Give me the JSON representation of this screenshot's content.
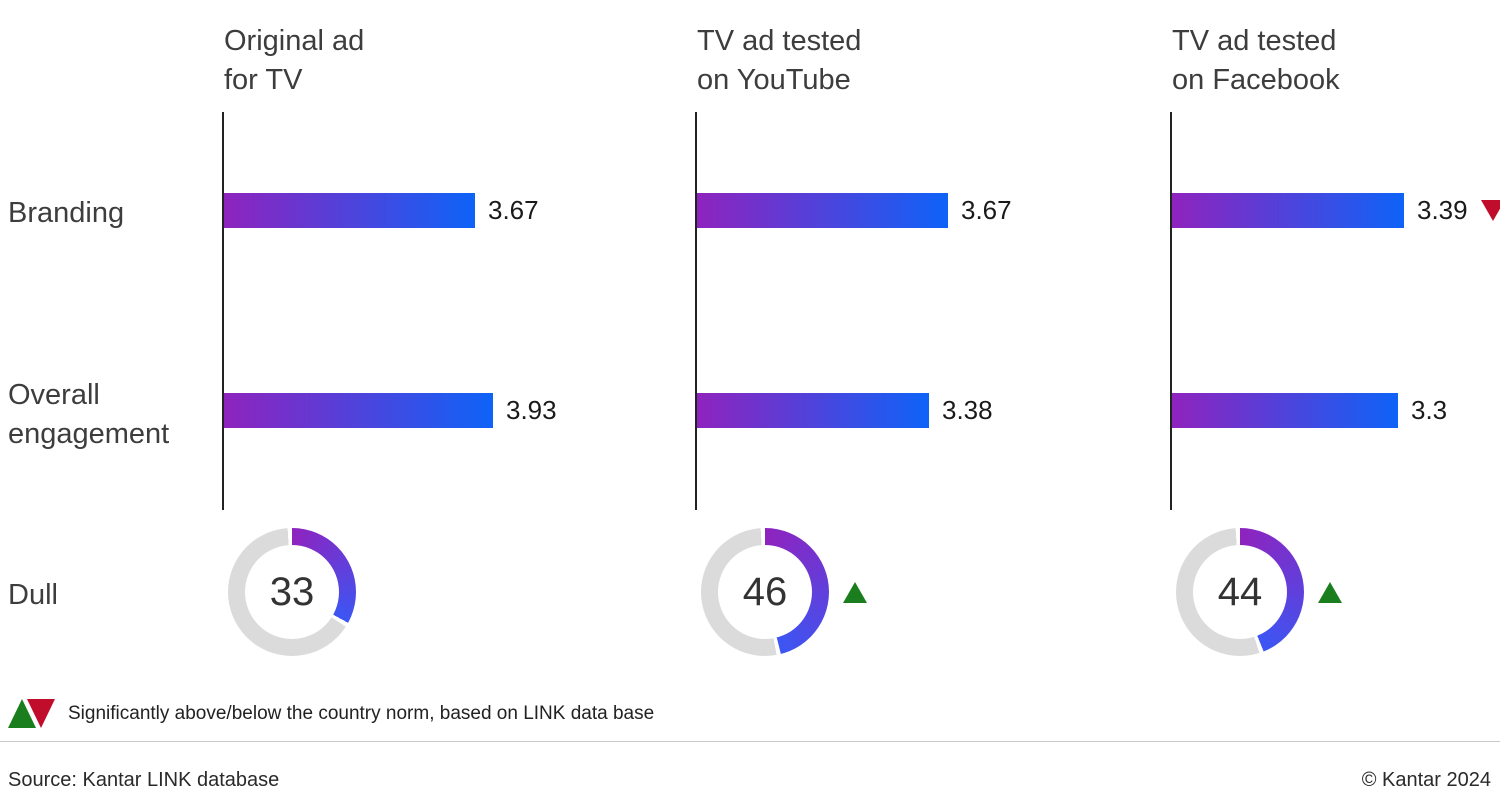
{
  "colors": {
    "bar_start": "#8F23BE",
    "bar_end": "#0E63F8",
    "donut_start": "#8F23BE",
    "donut_end": "#3B56F3",
    "donut_track": "#DBDBDB",
    "sig_up_green": "#1B7E1E",
    "sig_down_red": "#C00D2B"
  },
  "row_labels": {
    "branding": "Branding",
    "engagement_line1": "Overall",
    "engagement_line2": "engagement",
    "dull": "Dull"
  },
  "panels": [
    {
      "header_line1": "Original ad",
      "header_line2": "for TV",
      "branding": {
        "value": 3.67,
        "label": "3.67",
        "flag": "none"
      },
      "engagement": {
        "value": 3.93,
        "label": "3.93",
        "flag": "none"
      },
      "dull": {
        "value": 33,
        "label": "33",
        "flag": "none"
      }
    },
    {
      "header_line1": "TV ad tested",
      "header_line2": "on YouTube",
      "branding": {
        "value": 3.67,
        "label": "3.67",
        "flag": "none"
      },
      "engagement": {
        "value": 3.38,
        "label": "3.38",
        "flag": "none"
      },
      "dull": {
        "value": 46,
        "label": "46",
        "flag": "up"
      }
    },
    {
      "header_line1": "TV ad tested",
      "header_line2": "on Facebook",
      "branding": {
        "value": 3.39,
        "label": "3.39",
        "flag": "down"
      },
      "engagement": {
        "value": 3.3,
        "label": "3.3",
        "flag": "none"
      },
      "dull": {
        "value": 44,
        "label": "44",
        "flag": "up"
      }
    }
  ],
  "legend": {
    "text": "Significantly above/below the country norm, based on LINK data base"
  },
  "footer": {
    "source": "Source: Kantar LINK database",
    "copyright": "© Kantar 2024"
  },
  "chart_data": {
    "type": "bar",
    "categories": [
      "Original ad for TV",
      "TV ad tested on YouTube",
      "TV ad tested on Facebook"
    ],
    "series": [
      {
        "name": "Branding",
        "type": "bar",
        "values": [
          3.67,
          3.67,
          3.39
        ],
        "significance_vs_norm": [
          null,
          null,
          "below"
        ]
      },
      {
        "name": "Overall engagement",
        "type": "bar",
        "values": [
          3.93,
          3.38,
          3.3
        ],
        "significance_vs_norm": [
          null,
          null,
          null
        ]
      },
      {
        "name": "Dull",
        "type": "donut_percent",
        "values": [
          33,
          46,
          44
        ],
        "significance_vs_norm": [
          null,
          "above",
          "above"
        ]
      }
    ],
    "value_axis": {
      "bars_implied_max": 5,
      "donut_range": [
        0,
        100
      ]
    },
    "bar_color_gradient": [
      "#8F23BE",
      "#0E63F8"
    ],
    "legend_note": "Significantly above/below the country norm, based on LINK data base",
    "source": "Source: Kantar LINK database",
    "copyright": "© Kantar 2024",
    "grid": false,
    "legend_position": "bottom-left"
  }
}
